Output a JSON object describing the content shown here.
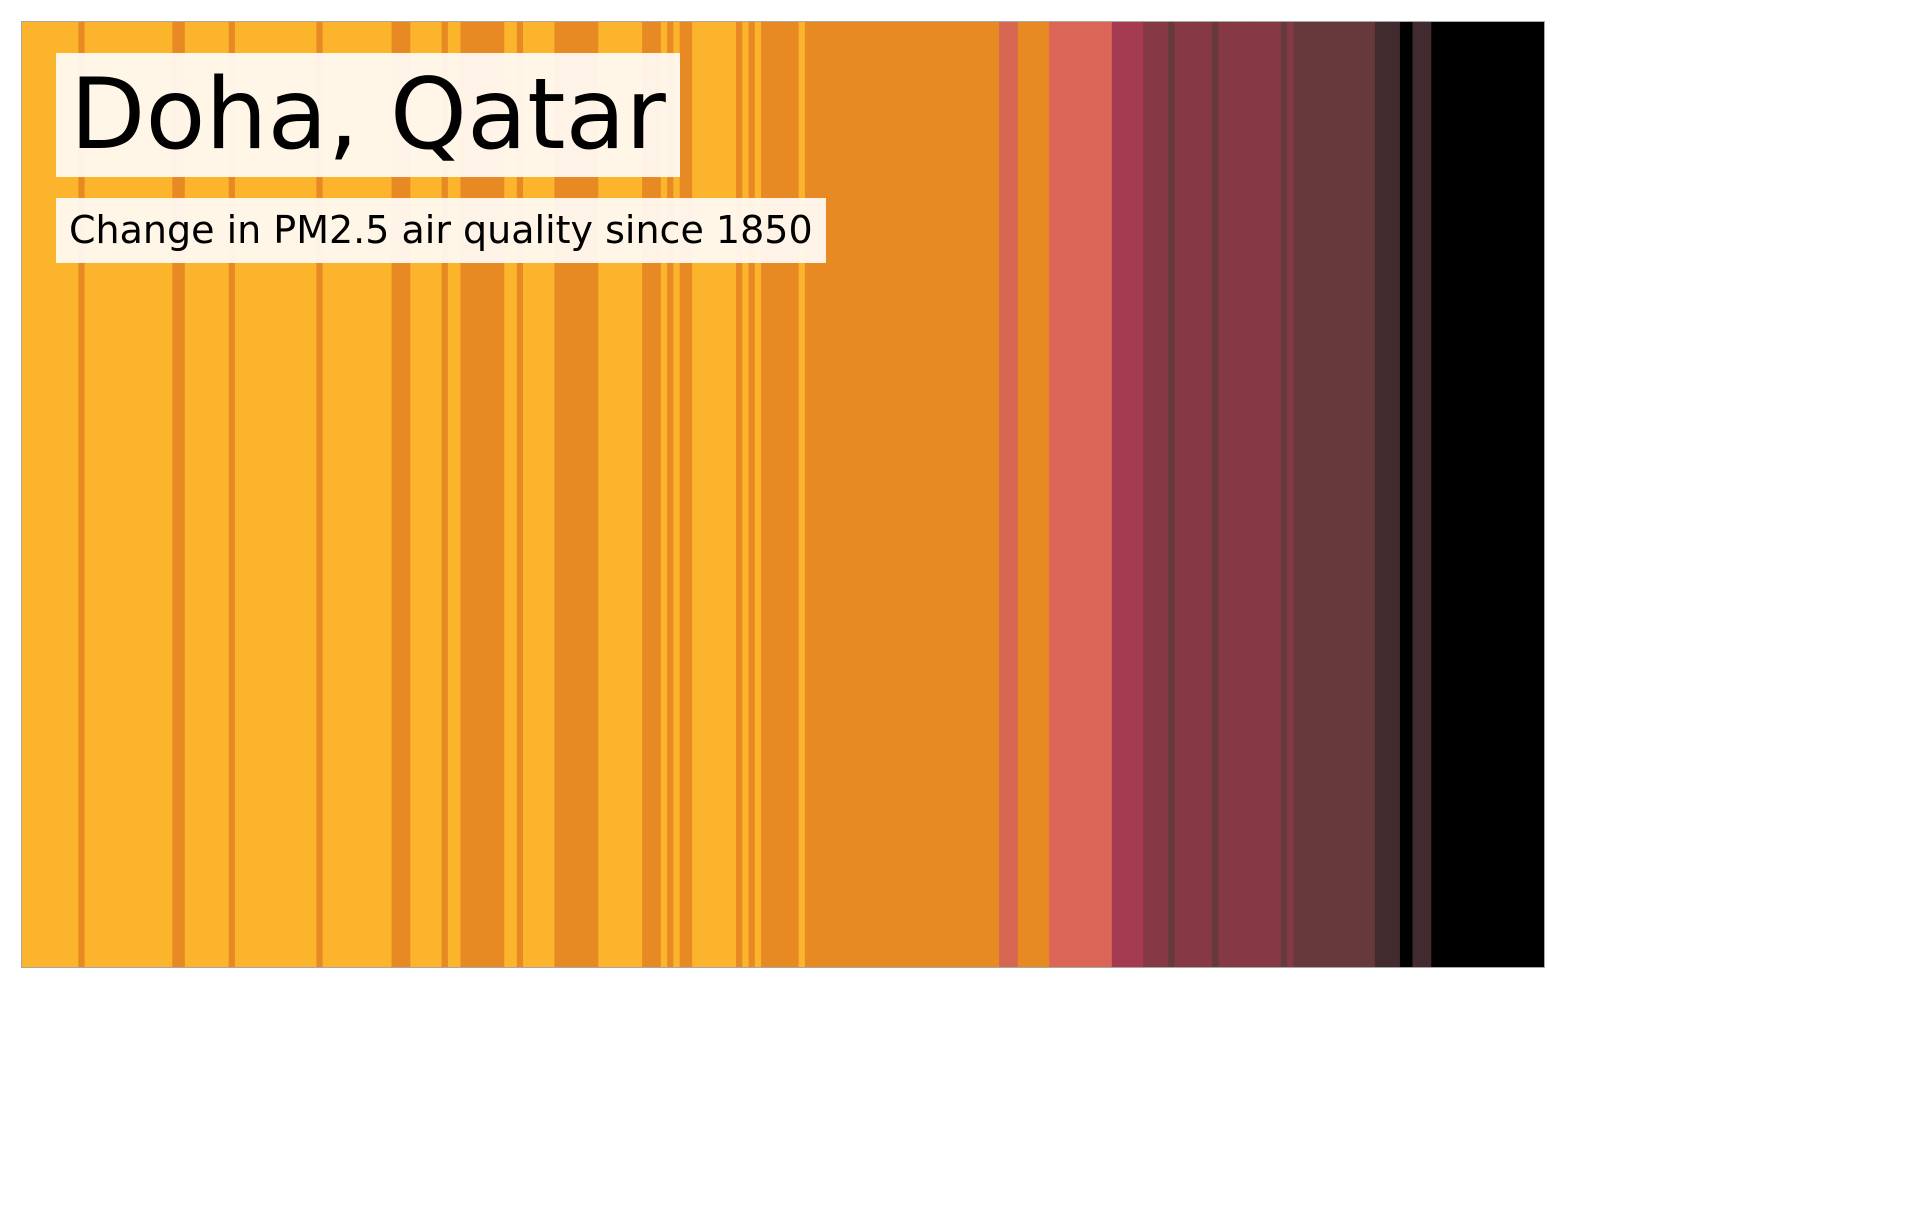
{
  "chart_data": {
    "type": "heatmap",
    "title": "Doha, Qatar",
    "subtitle": "Change in PM2.5 air quality since 1850",
    "xlabel": "",
    "ylabel": "",
    "legend": "none",
    "grid": false,
    "palette": {
      "0": "#fcb42d",
      "1": "#e88a24",
      "2": "#d76653",
      "3": "#db6657",
      "4": "#a53b50",
      "5": "#853943",
      "6": "#663a3c",
      "7": "#422b2e",
      "8": "#000000"
    },
    "note_levels": "Each stripe is one year; value is a color level 0 (cleanest) to 8 (most polluted).",
    "values": [
      0,
      0,
      0,
      0,
      0,
      0,
      0,
      0,
      0,
      1,
      0,
      0,
      0,
      0,
      0,
      0,
      0,
      0,
      0,
      0,
      0,
      0,
      0,
      0,
      1,
      1,
      0,
      0,
      0,
      0,
      0,
      0,
      0,
      1,
      0,
      0,
      0,
      0,
      0,
      0,
      0,
      0,
      0,
      0,
      0,
      0,
      0,
      1,
      0,
      0,
      0,
      0,
      0,
      0,
      0,
      0,
      0,
      0,
      0,
      1,
      1,
      1,
      0,
      0,
      0,
      0,
      0,
      1,
      0,
      0,
      1,
      1,
      1,
      1,
      1,
      1,
      1,
      0,
      0,
      1,
      0,
      0,
      0,
      0,
      0,
      1,
      1,
      1,
      1,
      1,
      1,
      1,
      0,
      0,
      0,
      0,
      0,
      0,
      0,
      1,
      1,
      1,
      0,
      1,
      0,
      1,
      1,
      0,
      0,
      0,
      0,
      0,
      0,
      0,
      1,
      0,
      1,
      0,
      1,
      1,
      1,
      1,
      1,
      1,
      0,
      1,
      1,
      1,
      1,
      1,
      1,
      1,
      1,
      1,
      1,
      1,
      1,
      1,
      1,
      1,
      1,
      1,
      1,
      1,
      1,
      1,
      1,
      1,
      1,
      1,
      1,
      1,
      1,
      1,
      1,
      1,
      2,
      2,
      2,
      1,
      1,
      1,
      1,
      1,
      3,
      3,
      3,
      3,
      3,
      3,
      3,
      3,
      3,
      3,
      4,
      4,
      4,
      4,
      4,
      5,
      5,
      5,
      5,
      6,
      5,
      5,
      5,
      5,
      5,
      5,
      6,
      5,
      5,
      5,
      5,
      5,
      5,
      5,
      5,
      5,
      5,
      6,
      5,
      6,
      6,
      6,
      6,
      6,
      6,
      6,
      6,
      6,
      6,
      6,
      6,
      6,
      7,
      7,
      7,
      7,
      8,
      8,
      7,
      7,
      7,
      8,
      8,
      8,
      8,
      8,
      8,
      8,
      8,
      8,
      8,
      8,
      8,
      8,
      8,
      8,
      8,
      8,
      8
    ]
  }
}
